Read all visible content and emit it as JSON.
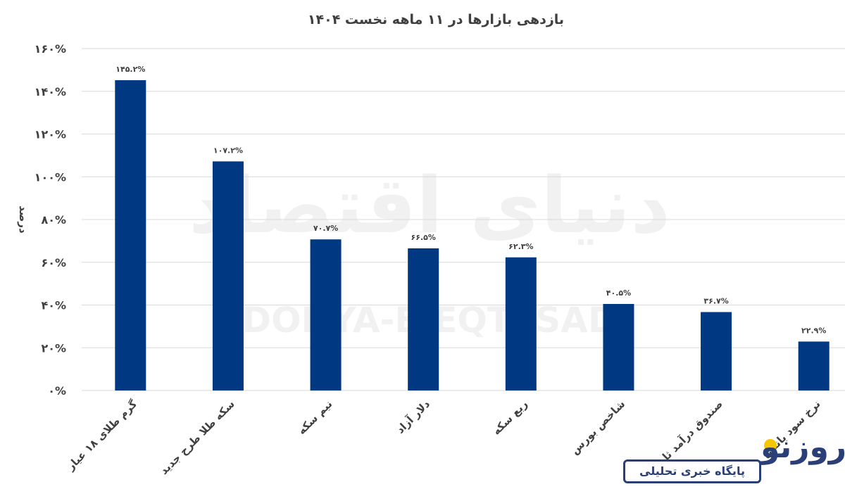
{
  "chart_data": {
    "type": "bar",
    "title": "بازدهی بازارها در ۱۱ ماهه نخست ۱۴۰۴",
    "ylabel": "درصد",
    "xlabel": "",
    "ylim": [
      0,
      160
    ],
    "yticks": [
      "۰%",
      "۲۰%",
      "۴۰%",
      "۶۰%",
      "۸۰%",
      "۱۰۰%",
      "۱۲۰%",
      "۱۴۰%",
      "۱۶۰%"
    ],
    "grid": true,
    "categories": [
      "گرم طلای ۱۸ عیار",
      "سکه طلا طرح جدید",
      "نیم سکه",
      "دلار آزاد",
      "ربع سکه",
      "شاخص بورس",
      "صندوق درآمد ثابت",
      "نرخ سود بانکی"
    ],
    "values": [
      145.2,
      107.2,
      70.7,
      66.5,
      62.3,
      40.5,
      36.7,
      22.9
    ],
    "data_labels": [
      "۱۴۵.۲%",
      "۱۰۷.۲%",
      "۷۰.۷%",
      "۶۶.۵%",
      "۶۲.۳%",
      "۴۰.۵%",
      "۳۶.۷%",
      "۲۲.۹%"
    ],
    "bar_color": "#003882"
  },
  "watermark": {
    "arabic": "دنیای اقتصاد",
    "latin": "DONYA-E-EQTESAD"
  },
  "logo": {
    "word": "روزنو",
    "tagline": "پایگاه خبری تحلیلی",
    "accent_color": "#f6c700"
  }
}
